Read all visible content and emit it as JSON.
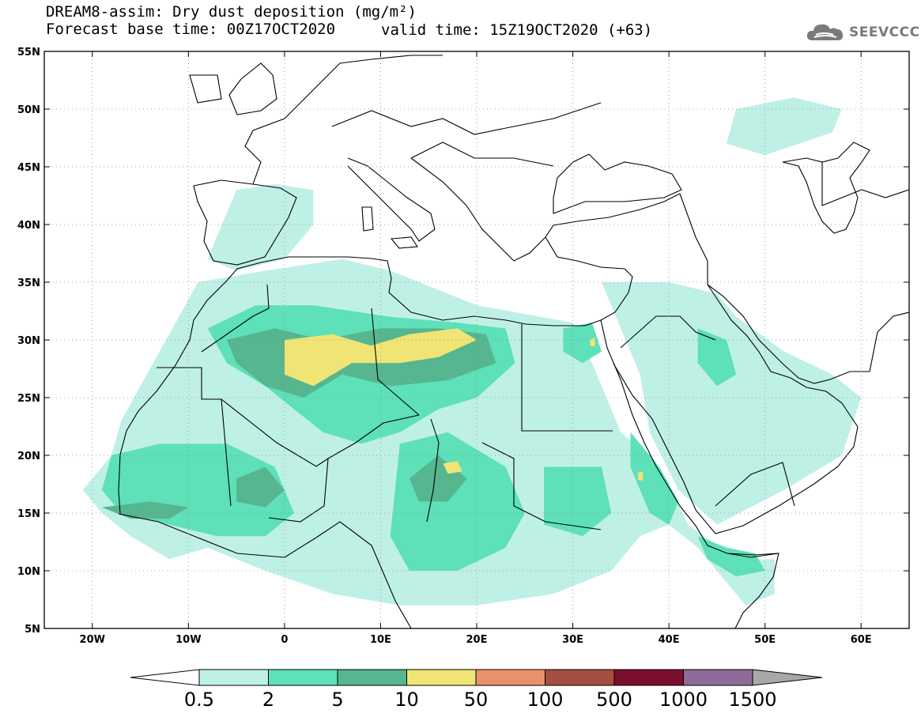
{
  "title": "DREAM8-assim: Dry dust deposition (mg/m²)",
  "forecast_base": "Forecast base time: 00Z17OCT2020",
  "valid_time": "valid time: 15Z19OCT2020 (+63)",
  "logo": {
    "text": "SEEVCCC",
    "icon": "cloud-icon",
    "color": "#7a7a7a"
  },
  "map": {
    "lon_range": [
      -25,
      65
    ],
    "lat_range": [
      5,
      55
    ],
    "lat_ticks": [
      {
        "value": 55,
        "label": "55N"
      },
      {
        "value": 50,
        "label": "50N"
      },
      {
        "value": 45,
        "label": "45N"
      },
      {
        "value": 40,
        "label": "40N"
      },
      {
        "value": 35,
        "label": "35N"
      },
      {
        "value": 30,
        "label": "30N"
      },
      {
        "value": 25,
        "label": "25N"
      },
      {
        "value": 20,
        "label": "20N"
      },
      {
        "value": 15,
        "label": "15N"
      },
      {
        "value": 10,
        "label": "10N"
      },
      {
        "value": 5,
        "label": "5N"
      }
    ],
    "lon_ticks": [
      {
        "value": -20,
        "label": "20W"
      },
      {
        "value": -10,
        "label": "10W"
      },
      {
        "value": 0,
        "label": "0"
      },
      {
        "value": 10,
        "label": "10E"
      },
      {
        "value": 20,
        "label": "20E"
      },
      {
        "value": 30,
        "label": "30E"
      },
      {
        "value": 40,
        "label": "40E"
      },
      {
        "value": 50,
        "label": "50E"
      },
      {
        "value": 60,
        "label": "60E"
      }
    ],
    "grid": "dotted"
  },
  "colorbar": {
    "levels": [
      "0.5",
      "2",
      "5",
      "10",
      "50",
      "100",
      "500",
      "1000",
      "1500"
    ],
    "colors": [
      "#bff0e6",
      "#5ee0b8",
      "#55b68f",
      "#f0e474",
      "#e9916a",
      "#a64e3f",
      "#7b0f2e",
      "#8e6b98"
    ],
    "under_color": "#ffffff",
    "over_color": "#a8a8a8"
  },
  "dust_areas": [
    {
      "level": 0,
      "coords": [
        [
          -9,
          35
        ],
        [
          -2,
          36
        ],
        [
          6,
          37
        ],
        [
          11,
          36
        ],
        [
          20,
          33
        ],
        [
          30,
          31.5
        ],
        [
          32,
          28
        ],
        [
          33,
          26
        ],
        [
          35,
          22
        ],
        [
          39,
          19
        ],
        [
          42,
          14
        ],
        [
          47,
          11
        ],
        [
          51,
          11
        ],
        [
          51,
          8
        ],
        [
          48,
          7
        ],
        [
          45,
          10
        ],
        [
          43,
          12
        ],
        [
          40,
          14
        ],
        [
          37,
          13
        ],
        [
          34,
          10
        ],
        [
          28,
          8
        ],
        [
          20,
          7
        ],
        [
          12,
          7
        ],
        [
          5,
          8
        ],
        [
          -2,
          10
        ],
        [
          -8,
          12
        ],
        [
          -12,
          11
        ],
        [
          -16,
          13
        ],
        [
          -19,
          15
        ],
        [
          -21,
          17
        ],
        [
          -18,
          20
        ],
        [
          -17,
          23
        ],
        [
          -15,
          26
        ],
        [
          -13,
          29
        ]
      ]
    },
    {
      "level": 0,
      "coords": [
        [
          33,
          35
        ],
        [
          40,
          35
        ],
        [
          45,
          34
        ],
        [
          47,
          32
        ],
        [
          52,
          29
        ],
        [
          57,
          27
        ],
        [
          60,
          25
        ],
        [
          58,
          20
        ],
        [
          52,
          17
        ],
        [
          45,
          14
        ],
        [
          41,
          17
        ],
        [
          38,
          22
        ],
        [
          37,
          27
        ],
        [
          35,
          31
        ]
      ]
    },
    {
      "level": 0,
      "coords": [
        [
          -5,
          43
        ],
        [
          -1,
          43.5
        ],
        [
          3,
          43
        ],
        [
          3,
          40
        ],
        [
          0,
          37
        ],
        [
          -5,
          36
        ],
        [
          -8,
          37
        ]
      ]
    },
    {
      "level": 0,
      "coords": [
        [
          47,
          50
        ],
        [
          53,
          51
        ],
        [
          58,
          50
        ],
        [
          57,
          48
        ],
        [
          50,
          46
        ],
        [
          46,
          47
        ]
      ]
    },
    {
      "level": 1,
      "coords": [
        [
          -8,
          31
        ],
        [
          -3,
          33
        ],
        [
          3,
          33
        ],
        [
          11,
          32
        ],
        [
          18,
          31.5
        ],
        [
          23,
          31
        ],
        [
          24,
          28
        ],
        [
          20,
          25
        ],
        [
          16,
          24
        ],
        [
          12,
          22
        ],
        [
          8,
          21
        ],
        [
          4,
          22
        ],
        [
          1,
          24
        ],
        [
          -2,
          26
        ],
        [
          -6,
          28
        ]
      ]
    },
    {
      "level": 1,
      "coords": [
        [
          -18,
          20
        ],
        [
          -13,
          21
        ],
        [
          -6,
          21
        ],
        [
          -1,
          19
        ],
        [
          1,
          15
        ],
        [
          -2,
          13
        ],
        [
          -7,
          13
        ],
        [
          -12,
          14
        ],
        [
          -17,
          15
        ],
        [
          -19,
          17
        ]
      ]
    },
    {
      "level": 1,
      "coords": [
        [
          12,
          21
        ],
        [
          17,
          22
        ],
        [
          23,
          19
        ],
        [
          25,
          15
        ],
        [
          23,
          12
        ],
        [
          18,
          10
        ],
        [
          13,
          10
        ],
        [
          11,
          13
        ]
      ]
    },
    {
      "level": 1,
      "coords": [
        [
          27,
          19
        ],
        [
          33,
          19
        ],
        [
          34,
          15
        ],
        [
          31,
          13
        ],
        [
          27,
          14
        ]
      ]
    },
    {
      "level": 1,
      "coords": [
        [
          29,
          31
        ],
        [
          32,
          31.5
        ],
        [
          33,
          29
        ],
        [
          31,
          28
        ],
        [
          29,
          29
        ]
      ]
    },
    {
      "level": 1,
      "coords": [
        [
          36,
          22
        ],
        [
          39,
          19
        ],
        [
          41,
          16
        ],
        [
          40,
          14
        ],
        [
          38,
          15
        ],
        [
          36,
          19
        ]
      ]
    },
    {
      "level": 1,
      "coords": [
        [
          43,
          31
        ],
        [
          46,
          30
        ],
        [
          47,
          27
        ],
        [
          45,
          26
        ],
        [
          43,
          28
        ]
      ]
    },
    {
      "level": 1,
      "coords": [
        [
          43,
          13
        ],
        [
          46,
          12
        ],
        [
          49,
          11.5
        ],
        [
          50,
          10
        ],
        [
          47,
          9.5
        ],
        [
          44,
          11
        ]
      ]
    },
    {
      "level": 2,
      "coords": [
        [
          -6,
          30
        ],
        [
          -1,
          31
        ],
        [
          4,
          30
        ],
        [
          10,
          31
        ],
        [
          16,
          31
        ],
        [
          21,
          30.5
        ],
        [
          22,
          28
        ],
        [
          17,
          26.5
        ],
        [
          11,
          26
        ],
        [
          6,
          27
        ],
        [
          2,
          25
        ],
        [
          -2,
          26
        ],
        [
          -5,
          28
        ]
      ]
    },
    {
      "level": 2,
      "coords": [
        [
          -19,
          15.5
        ],
        [
          -14,
          16
        ],
        [
          -10,
          15.5
        ],
        [
          -12,
          14.5
        ],
        [
          -16,
          14.5
        ]
      ]
    },
    {
      "level": 2,
      "coords": [
        [
          -5,
          18
        ],
        [
          -2,
          19
        ],
        [
          0,
          17
        ],
        [
          -2,
          15.5
        ],
        [
          -5,
          16
        ]
      ]
    },
    {
      "level": 2,
      "coords": [
        [
          13,
          18
        ],
        [
          16,
          20
        ],
        [
          19,
          18
        ],
        [
          17,
          16
        ],
        [
          14,
          16
        ]
      ]
    },
    {
      "level": 3,
      "coords": [
        [
          0,
          30
        ],
        [
          5,
          30.5
        ],
        [
          9,
          29.5
        ],
        [
          13,
          30.5
        ],
        [
          18,
          31
        ],
        [
          20,
          30
        ],
        [
          16,
          28.5
        ],
        [
          12,
          28
        ],
        [
          7,
          28
        ],
        [
          3,
          26
        ],
        [
          0,
          27
        ]
      ]
    },
    {
      "level": 3,
      "coords": [
        [
          16.5,
          19.3
        ],
        [
          18,
          19.5
        ],
        [
          18.5,
          18.6
        ],
        [
          17,
          18.4
        ]
      ]
    },
    {
      "level": 3,
      "coords": [
        [
          31.8,
          30
        ],
        [
          32.3,
          30.2
        ],
        [
          32.3,
          29.4
        ],
        [
          31.8,
          29.5
        ]
      ]
    },
    {
      "level": 3,
      "coords": [
        [
          36.8,
          18.5
        ],
        [
          37.3,
          18.6
        ],
        [
          37.3,
          17.8
        ],
        [
          36.8,
          17.9
        ]
      ]
    }
  ]
}
